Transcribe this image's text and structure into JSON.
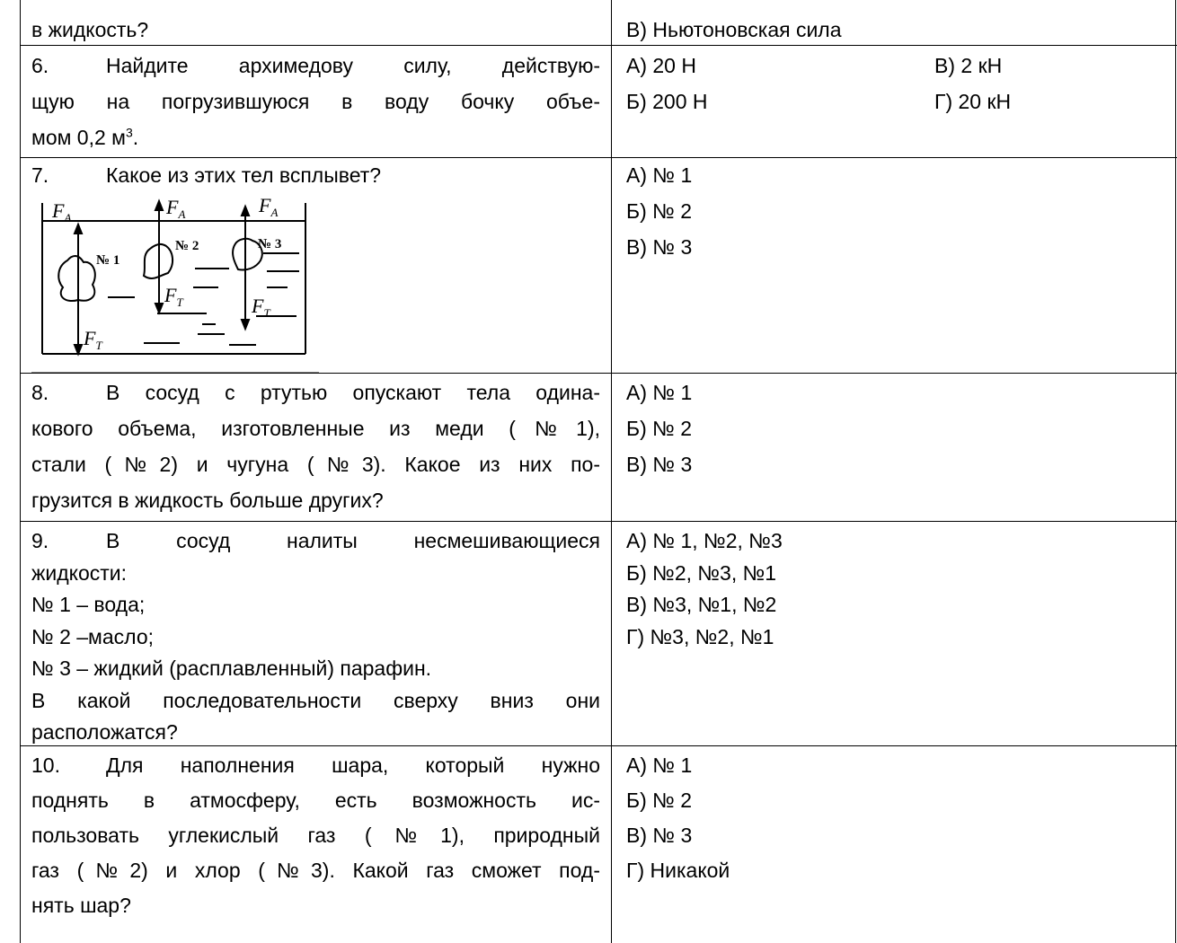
{
  "table": {
    "rows": [
      {
        "question": {
          "lines": [
            "в жидкость?"
          ]
        },
        "answers": [
          "В) Ньютоновская сила"
        ]
      },
      {
        "question": {
          "number": "6.",
          "lines": [
            "Найдите архимедову силу, действую-",
            "щую на погрузившуюся в воду бочку  объе-",
            "мом 0,2 м"
          ],
          "superscript": "3",
          "tail": "."
        },
        "answers": [
          "А)  20 Н",
          "Б)  200 Н",
          "В) 2 кН",
          "Г) 20 кН"
        ]
      },
      {
        "question": {
          "number": "7.",
          "lines": [
            "Какое из этих тел всплывет?"
          ],
          "figure": {
            "bodies": [
              {
                "label": "№ 1",
                "buoyant": {
                  "symbol": "F",
                  "sub": "А"
                },
                "gravity": {
                  "symbol": "F",
                  "sub": "Т"
                }
              },
              {
                "label": "№ 2",
                "buoyant": {
                  "symbol": "F",
                  "sub": "А"
                },
                "gravity": {
                  "symbol": "F",
                  "sub": "Т"
                }
              },
              {
                "label": "№ 3",
                "buoyant": {
                  "symbol": "F",
                  "sub": "А"
                },
                "gravity": {
                  "symbol": "F",
                  "sub": "Т"
                }
              }
            ]
          }
        },
        "answers": [
          "А) № 1",
          "Б) № 2",
          "В) № 3"
        ]
      },
      {
        "question": {
          "number": "8.",
          "lines": [
            "В сосуд с ртутью опускают тела одина-",
            "кового объема, изготовленные из меди (№1),",
            "стали (№2) и чугуна (№3). Какое из них по-",
            "грузится в жидкость больше других?"
          ]
        },
        "answers": [
          "А) № 1",
          "Б) № 2",
          "В) № 3"
        ]
      },
      {
        "question": {
          "number": "9.",
          "lines": [
            "В сосуд налиты несмешивающиеся",
            "жидкости:",
            "№ 1 – вода;",
            "№ 2 –масло;",
            "№ 3 – жидкий (расплавленный) парафин.",
            "В какой последовательности сверху вниз они",
            "расположатся?"
          ]
        },
        "answers": [
          "А) № 1, №2, №3",
          "Б) №2, №3, №1",
          "В) №3, №1, №2",
          "Г) №3, №2, №1"
        ]
      },
      {
        "question": {
          "number": "10.",
          "lines": [
            "Для наполнения шара, который нужно",
            "поднять в атмосферу, есть возможность ис-",
            "пользовать углекислый газ (№1), природный",
            "газ (№2) и хлор (№3). Какой газ сможет под-",
            "нять шар?"
          ]
        },
        "answers": [
          "А) № 1",
          "Б) № 2",
          "В) № 3",
          "Г) Никакой"
        ]
      }
    ]
  }
}
